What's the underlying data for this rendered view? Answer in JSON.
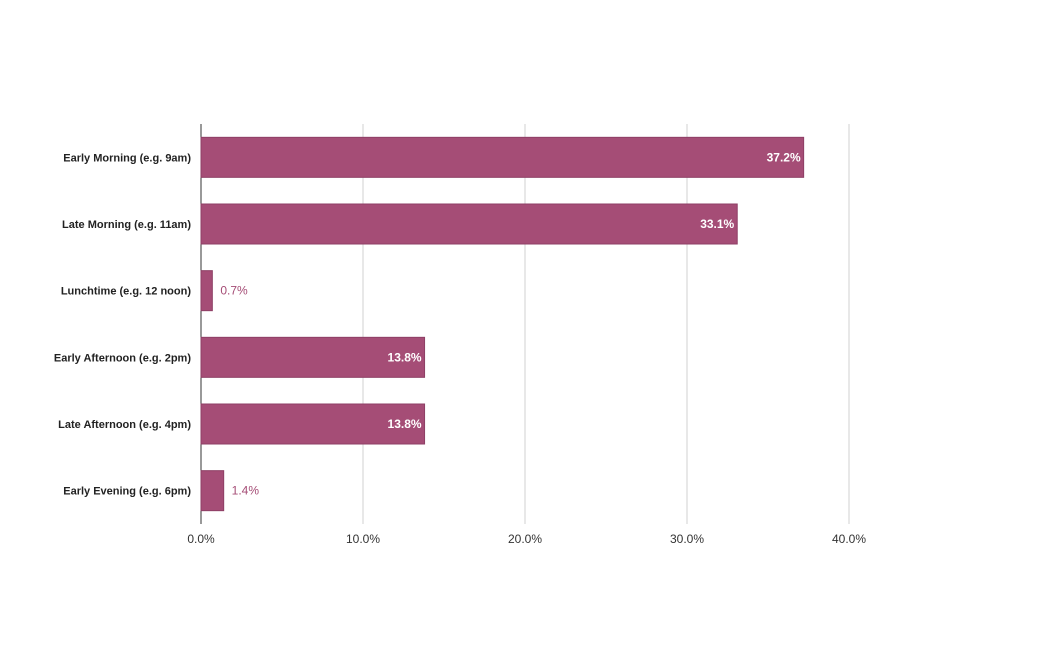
{
  "chart_data": {
    "type": "bar",
    "orientation": "horizontal",
    "categories": [
      "Early Morning (e.g. 9am)",
      "Late Morning (e.g. 11am)",
      "Lunchtime (e.g. 12 noon)",
      "Early Afternoon (e.g. 2pm)",
      "Late Afternoon (e.g. 4pm)",
      "Early Evening (e.g. 6pm)"
    ],
    "values": [
      37.2,
      33.1,
      0.7,
      13.8,
      13.8,
      1.4
    ],
    "value_labels": [
      "37.2%",
      "33.1%",
      "0.7%",
      "13.8%",
      "13.8%",
      "1.4%"
    ],
    "xlim": [
      0,
      40
    ],
    "x_ticks": [
      0,
      10,
      20,
      30,
      40
    ],
    "x_tick_labels": [
      "0.0%",
      "10.0%",
      "20.0%",
      "30.0%",
      "40.0%"
    ],
    "title": "",
    "xlabel": "",
    "ylabel": "",
    "grid": true,
    "legend": "none",
    "colors": {
      "bar": "#a54d76",
      "bar_stroke": "#8e3f65",
      "grid": "#d0d0d0",
      "axis": "#333333"
    }
  }
}
